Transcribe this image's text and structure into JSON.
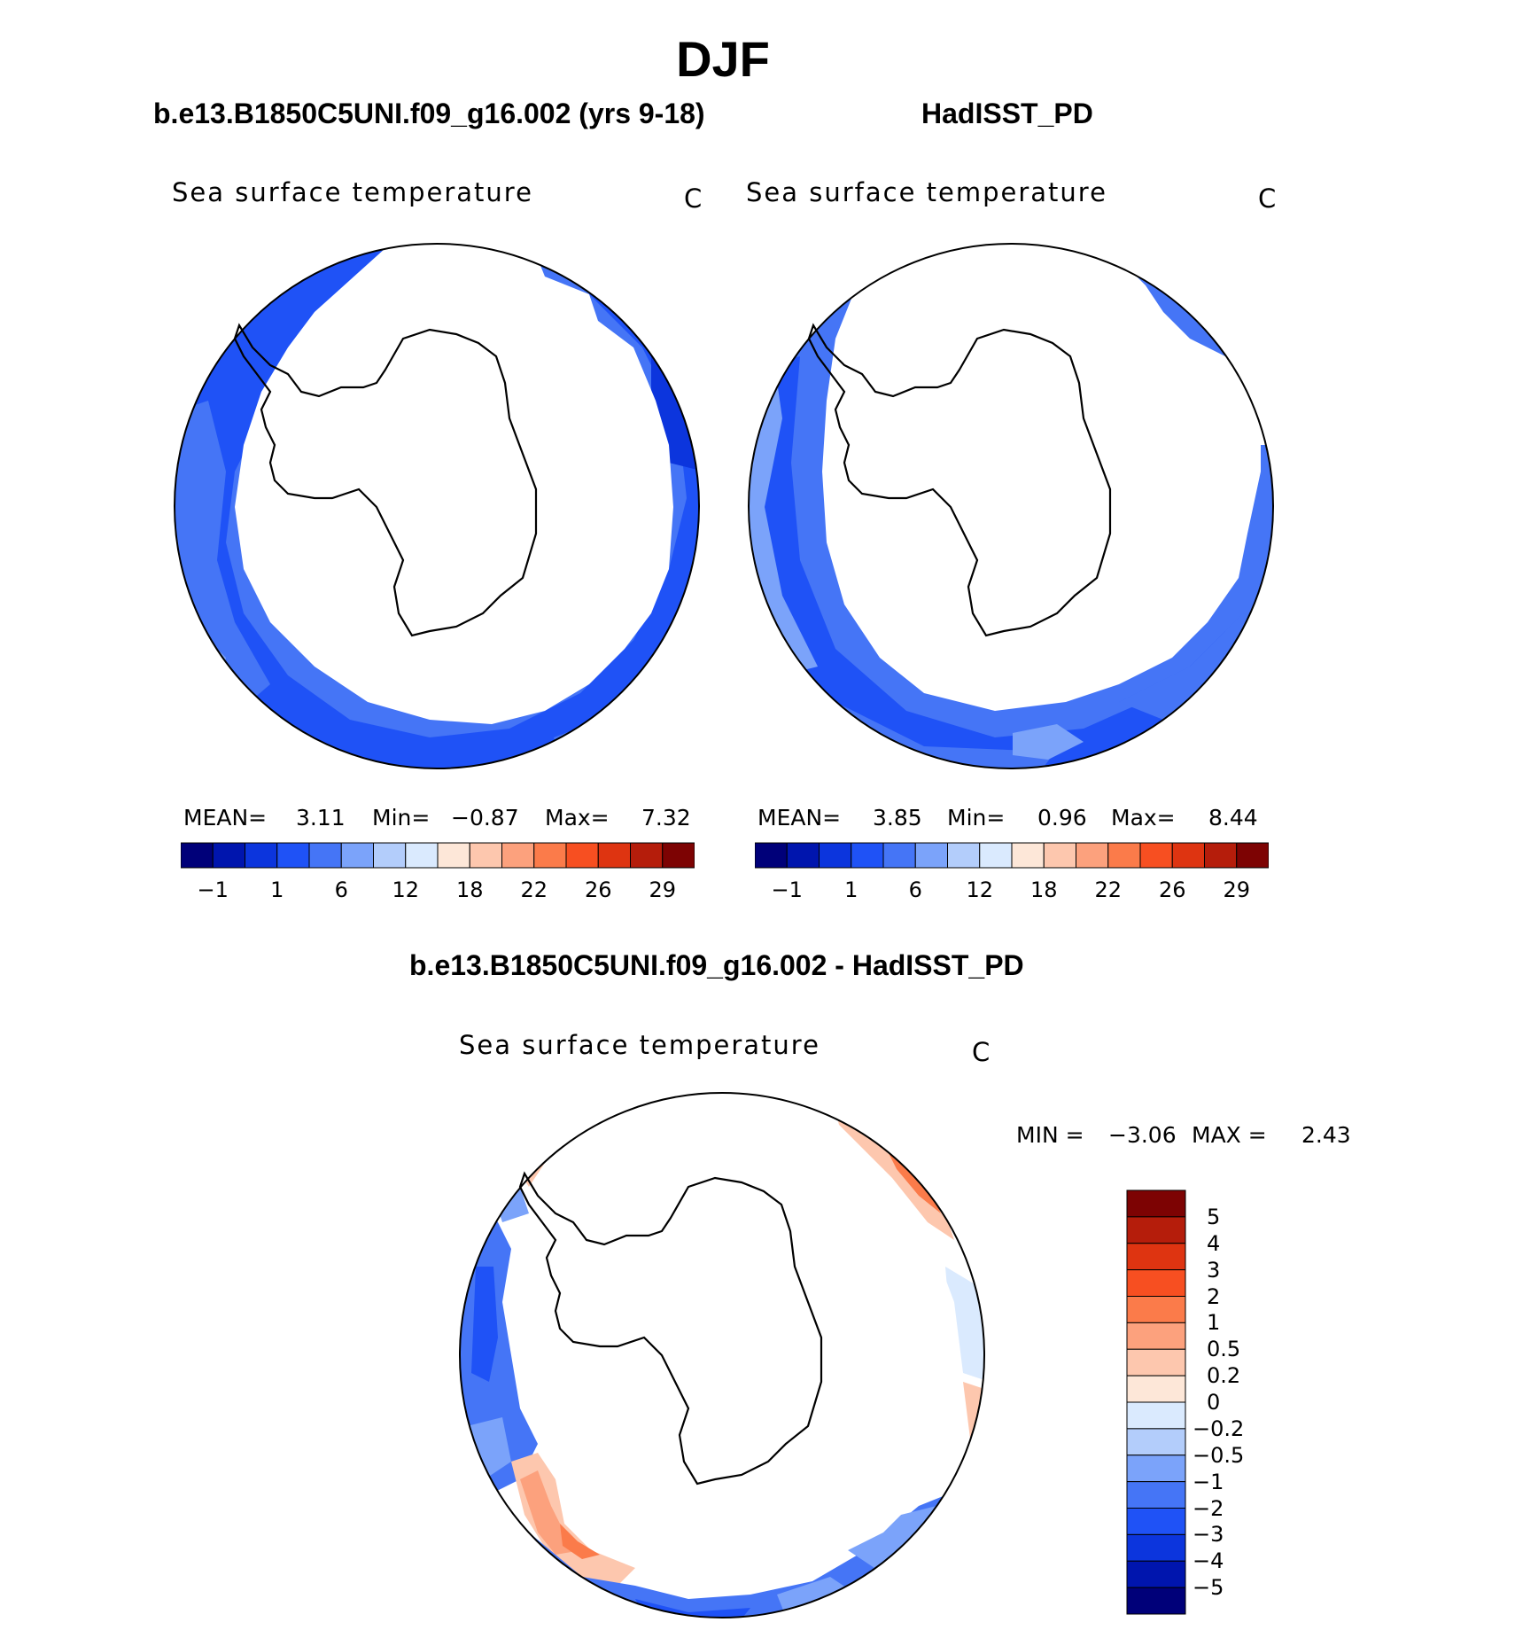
{
  "season": "DJF",
  "panels": {
    "left": {
      "case": "b.e13.B1850C5UNI.f09_g16.002 (yrs 9-18)",
      "variable": "Sea surface temperature",
      "units": "C",
      "mean_label": "MEAN=",
      "mean": "3.11",
      "min_label": "Min=",
      "min": "−0.87",
      "max_label": "Max=",
      "max": "7.32"
    },
    "right": {
      "case": "HadISST_PD",
      "variable": "Sea surface temperature",
      "units": "C",
      "mean_label": "MEAN=",
      "mean": "3.85",
      "min_label": "Min=",
      "min": "0.96",
      "max_label": "Max=",
      "max": "8.44"
    },
    "diff": {
      "case": "b.e13.B1850C5UNI.f09_g16.002 - HadISST_PD",
      "variable": "Sea surface temperature",
      "units": "C",
      "min_label": "MIN =",
      "min": "−3.06",
      "max_label": "MAX =",
      "max": "2.43"
    }
  },
  "colorbar_abs": {
    "colors": [
      "#000079",
      "#0015ae",
      "#0c35dd",
      "#1f52f6",
      "#4575f6",
      "#7ba3fa",
      "#b3cdfb",
      "#daeafe",
      "#fde7d8",
      "#fdc7ae",
      "#fca17d",
      "#fb7b4a",
      "#f74f21",
      "#de3411",
      "#b51d0b",
      "#7d0303"
    ],
    "tick_labels": [
      "−1",
      "1",
      "6",
      "12",
      "18",
      "22",
      "26",
      "29"
    ]
  },
  "colorbar_diff": {
    "colors_top_to_bottom": [
      "#7d0303",
      "#b51d0b",
      "#de3411",
      "#f74f21",
      "#fb7b4a",
      "#fca17d",
      "#fdc7ae",
      "#fde7d8",
      "#daeafe",
      "#b3cdfb",
      "#7ba3fa",
      "#4575f6",
      "#1f52f6",
      "#0c35dd",
      "#0015ae",
      "#000079"
    ],
    "tick_labels": [
      "5",
      "4",
      "3",
      "2",
      "1",
      "0.5",
      "0.2",
      "0",
      "−0.2",
      "−0.5",
      "−1",
      "−2",
      "−3",
      "−4",
      "−5"
    ]
  }
}
